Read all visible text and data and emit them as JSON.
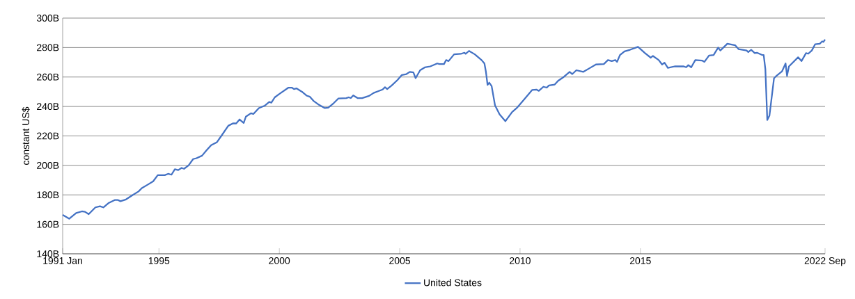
{
  "chart_data": {
    "type": "line",
    "ylabel": "constant US$",
    "x": [
      1991.0,
      1991.27,
      1991.56,
      1991.8,
      1991.93,
      1992.08,
      1992.36,
      1992.55,
      1992.69,
      1992.92,
      1993.16,
      1993.3,
      1993.4,
      1993.63,
      1993.92,
      1994.15,
      1994.29,
      1994.53,
      1994.76,
      1994.95,
      1995.24,
      1995.38,
      1995.52,
      1995.66,
      1995.8,
      1995.94,
      1996.04,
      1996.23,
      1996.42,
      1996.56,
      1996.79,
      1996.98,
      1997.17,
      1997.41,
      1997.59,
      1997.88,
      1998.07,
      1998.21,
      1998.35,
      1998.52,
      1998.61,
      1998.82,
      1998.92,
      1999.15,
      1999.39,
      1999.58,
      1999.67,
      1999.81,
      2000.0,
      2000.38,
      2000.52,
      2000.61,
      2000.71,
      2000.94,
      2001.13,
      2001.27,
      2001.42,
      2001.65,
      2001.89,
      2002.03,
      2002.26,
      2002.45,
      2002.78,
      2002.88,
      2002.97,
      2003.07,
      2003.25,
      2003.44,
      2003.73,
      2003.92,
      2004.1,
      2004.29,
      2004.39,
      2004.48,
      2004.67,
      2004.91,
      2005.09,
      2005.28,
      2005.42,
      2005.57,
      2005.66,
      2005.85,
      2006.04,
      2006.27,
      2006.56,
      2006.65,
      2006.84,
      2006.93,
      2007.03,
      2007.26,
      2007.54,
      2007.69,
      2007.74,
      2007.88,
      2008.12,
      2008.4,
      2008.52,
      2008.58,
      2008.65,
      2008.72,
      2008.82,
      2008.96,
      2009.15,
      2009.39,
      2009.67,
      2009.86,
      2010.14,
      2010.5,
      2010.68,
      2010.78,
      2010.97,
      2011.11,
      2011.2,
      2011.44,
      2011.58,
      2011.77,
      2012.06,
      2012.17,
      2012.34,
      2012.63,
      2012.91,
      2013.15,
      2013.48,
      2013.65,
      2013.81,
      2013.96,
      2014.03,
      2014.15,
      2014.34,
      2014.57,
      2014.9,
      2015.19,
      2015.43,
      2015.52,
      2015.76,
      2015.9,
      2016.0,
      2016.14,
      2016.42,
      2016.8,
      2016.9,
      2016.99,
      2017.11,
      2017.28,
      2017.56,
      2017.66,
      2017.85,
      2018.04,
      2018.23,
      2018.32,
      2018.61,
      2018.94,
      2019.08,
      2019.41,
      2019.48,
      2019.6,
      2019.75,
      2019.84,
      2020.07,
      2020.12,
      2020.19,
      2020.27,
      2020.36,
      2020.55,
      2020.65,
      2020.88,
      2021.03,
      2021.09,
      2021.17,
      2021.36,
      2021.55,
      2021.69,
      2021.88,
      2021.97,
      2022.12,
      2022.26,
      2022.45,
      2022.55,
      2022.6,
      2022.67
    ],
    "series": [
      {
        "name": "United States",
        "color": "#4472c4",
        "values": [
          166.4,
          163.8,
          167.7,
          168.8,
          168.5,
          166.9,
          171.5,
          172.3,
          171.5,
          174.6,
          176.5,
          176.5,
          175.7,
          176.9,
          180,
          182.3,
          184.6,
          186.9,
          189.2,
          193.4,
          193.4,
          194.3,
          193.7,
          197.4,
          196.8,
          198.3,
          197.7,
          200,
          204.3,
          204.9,
          206.6,
          210.3,
          213.8,
          215.8,
          220,
          226.9,
          228.5,
          228.5,
          231.2,
          228.8,
          233.1,
          235.4,
          234.9,
          238.9,
          240.5,
          243.1,
          242.6,
          246.2,
          248.5,
          252.8,
          252.8,
          251.8,
          252.3,
          250,
          247.4,
          246.6,
          243.8,
          241.1,
          238.9,
          239.2,
          242.3,
          245.4,
          245.7,
          246.2,
          245.7,
          247.5,
          245.7,
          245.7,
          247.2,
          249.2,
          250.3,
          251.5,
          253.1,
          251.8,
          254.3,
          258,
          261.4,
          262,
          263.5,
          263.1,
          259.2,
          264.6,
          266.5,
          267.2,
          269.2,
          268.8,
          268.8,
          271.5,
          270.8,
          275.4,
          275.7,
          276.5,
          275.8,
          277.7,
          275.4,
          271.5,
          269.2,
          263.8,
          254.6,
          256.2,
          253.8,
          240.8,
          234.6,
          230,
          236.2,
          238.9,
          244.2,
          251.2,
          251.5,
          250.6,
          253.4,
          252.8,
          254.3,
          254.9,
          257.4,
          259.5,
          263.5,
          262,
          264.6,
          263.5,
          266.2,
          268.5,
          268.8,
          271.5,
          270.8,
          271.5,
          270.3,
          274.9,
          277.4,
          278.5,
          280.5,
          276.2,
          273.1,
          274.3,
          271.5,
          268.5,
          269.7,
          266.2,
          267.2,
          267.2,
          266.6,
          268.1,
          266.6,
          271.5,
          271.2,
          270.3,
          274.6,
          274.9,
          280,
          278,
          282.6,
          281.5,
          278.9,
          278,
          276.9,
          278.5,
          276.2,
          276.5,
          274.9,
          274.9,
          265.4,
          230.8,
          233.8,
          259.2,
          260.8,
          263.8,
          269.2,
          260.8,
          267.2,
          270.3,
          273.4,
          270.8,
          276.2,
          275.8,
          278,
          282.3,
          282.6,
          284.2,
          283.8,
          285.4
        ]
      }
    ],
    "xlim": [
      1991.0,
      2022.67
    ],
    "ylim": [
      140,
      300
    ],
    "xticks": [
      {
        "value": 1991.0,
        "label": "1991 Jan"
      },
      1995,
      2000,
      2005,
      2010,
      2015,
      {
        "value": 2022.67,
        "label": "2022 Sep"
      }
    ],
    "yticks": [
      {
        "value": 140,
        "label": "140B"
      },
      {
        "value": 160,
        "label": "160B"
      },
      {
        "value": 180,
        "label": "180B"
      },
      {
        "value": 200,
        "label": "200B"
      },
      {
        "value": 220,
        "label": "220B"
      },
      {
        "value": 240,
        "label": "240B"
      },
      {
        "value": 260,
        "label": "260B"
      },
      {
        "value": 280,
        "label": "280B"
      },
      {
        "value": 300,
        "label": "300B"
      }
    ],
    "grid": "y",
    "legend": "bottom",
    "marker": "none",
    "line_style": "solid"
  }
}
